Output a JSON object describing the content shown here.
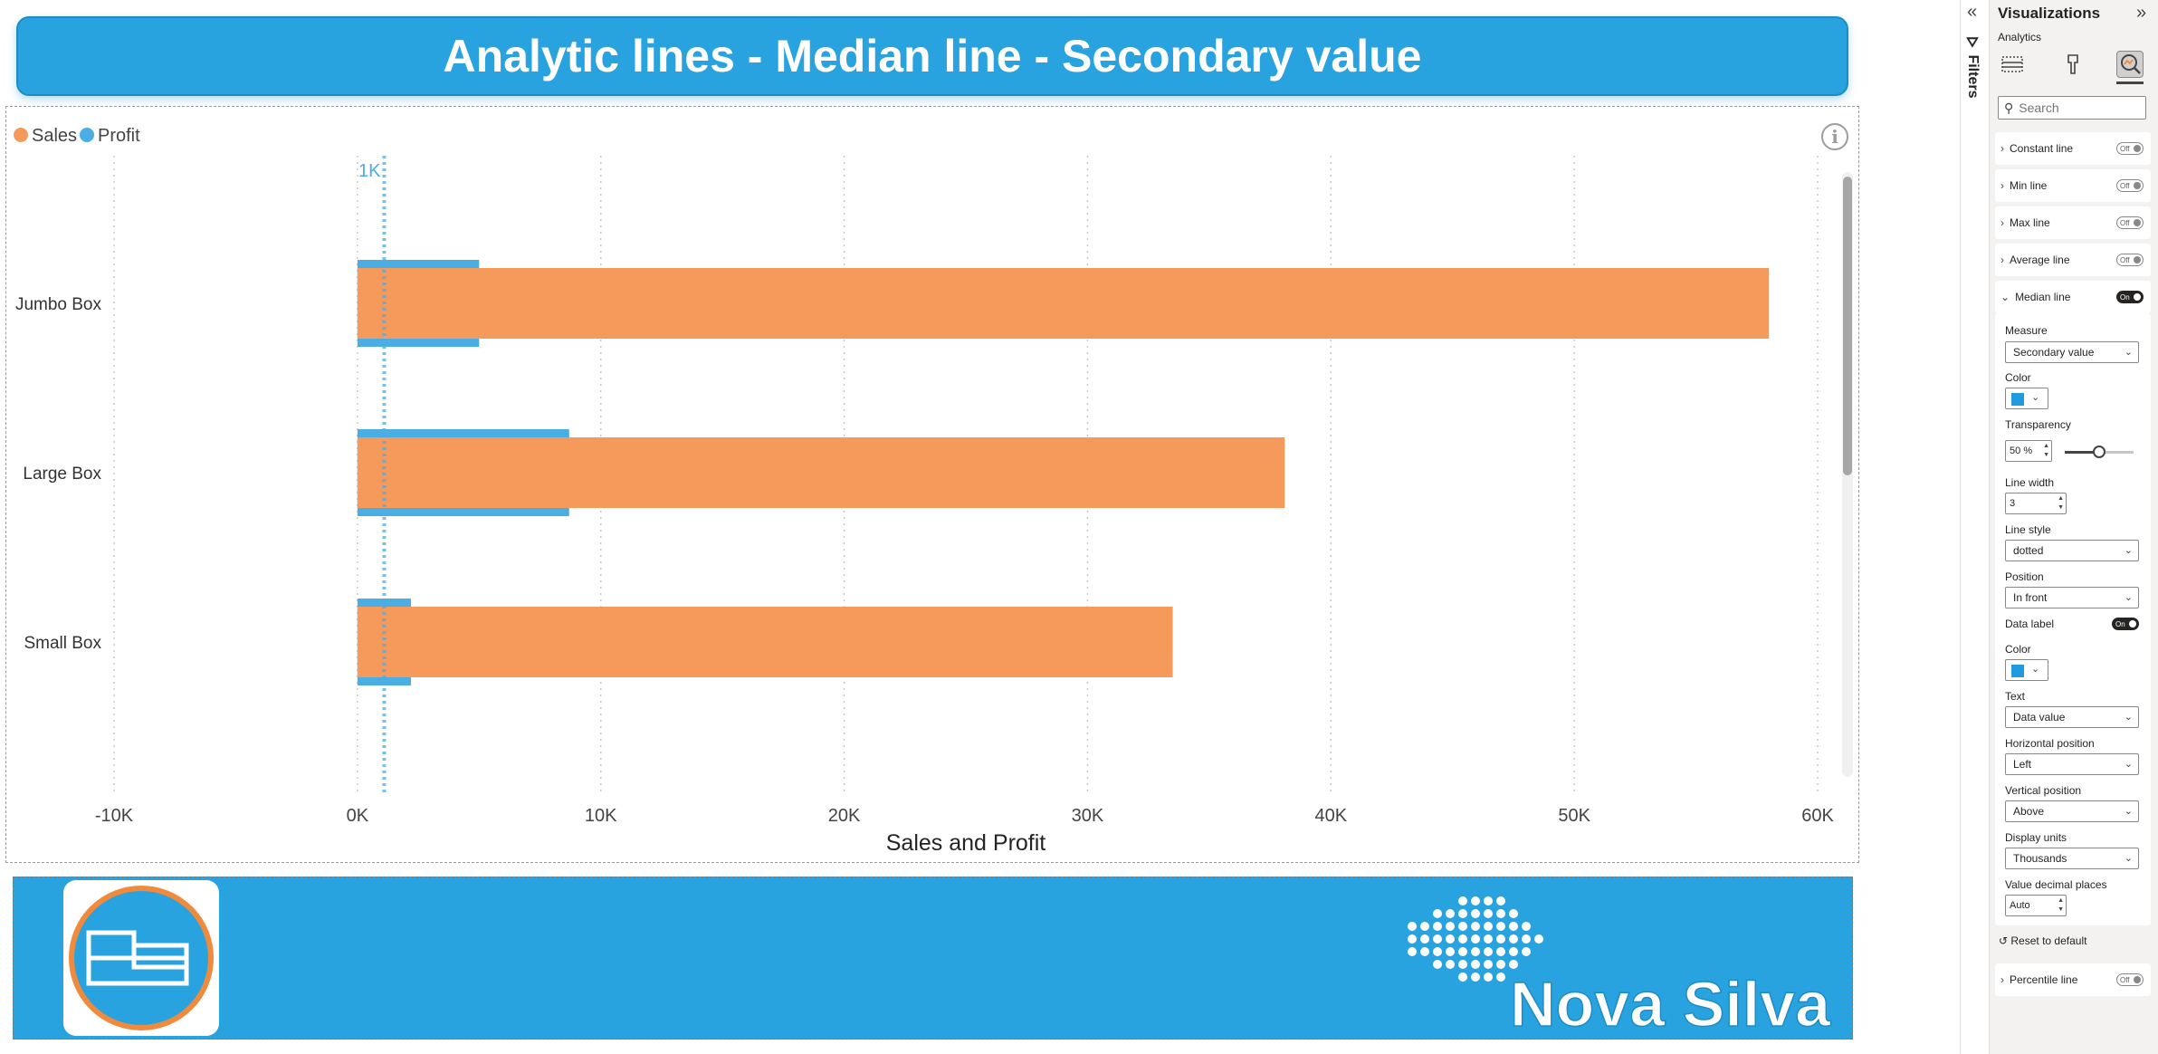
{
  "report": {
    "title": "Analytic lines - Median line - Secondary value"
  },
  "chart_data": {
    "type": "bar",
    "orientation": "horizontal",
    "categories": [
      "Jumbo Box",
      "Large Box",
      "Small Box"
    ],
    "series": [
      {
        "name": "Sales",
        "values": [
          58000,
          38100,
          33500
        ],
        "color": "#f59a5b"
      },
      {
        "name": "Profit",
        "values": [
          5000,
          8700,
          2200
        ],
        "color": "#4aade3"
      }
    ],
    "xlabel": "Sales and Profit",
    "ylabel": "",
    "xlim": [
      -10000,
      60000
    ],
    "xticks": [
      "-10K",
      "0K",
      "10K",
      "20K",
      "30K",
      "40K",
      "50K",
      "60K"
    ],
    "xtick_values": [
      -10000,
      0,
      10000,
      20000,
      30000,
      40000,
      50000,
      60000
    ],
    "grid": "vertical dotted",
    "legend": "top-left",
    "median_line": {
      "value": 1100,
      "label": "1K",
      "style": "dotted",
      "color": "#4aade3"
    }
  },
  "footer": {
    "brand": "Nova Silva"
  },
  "filters_pane": {
    "label": "Filters"
  },
  "visualizations_pane": {
    "title": "Visualizations",
    "subtitle": "Analytics",
    "search_placeholder": "Search",
    "sections": [
      {
        "label": "Constant line",
        "toggle": "Off"
      },
      {
        "label": "Min line",
        "toggle": "Off"
      },
      {
        "label": "Max line",
        "toggle": "Off"
      },
      {
        "label": "Average line",
        "toggle": "Off"
      },
      {
        "label": "Median line",
        "toggle": "On"
      }
    ],
    "median_settings": {
      "measure_label": "Measure",
      "measure_value": "Secondary value",
      "color_label": "Color",
      "transparency_label": "Transparency",
      "transparency_value": "50",
      "transparency_unit": "%",
      "line_width_label": "Line width",
      "line_width_value": "3",
      "line_style_label": "Line style",
      "line_style_value": "dotted",
      "position_label": "Position",
      "position_value": "In front",
      "data_label_label": "Data label",
      "data_label_toggle": "On",
      "label_color_label": "Color",
      "text_label": "Text",
      "text_value": "Data value",
      "hpos_label": "Horizontal position",
      "hpos_value": "Left",
      "vpos_label": "Vertical position",
      "vpos_value": "Above",
      "display_units_label": "Display units",
      "display_units_value": "Thousands",
      "decimal_label": "Value decimal places",
      "decimal_value": "Auto",
      "line_color": "#1f9bde"
    },
    "reset_label": "Reset to default",
    "percentile": {
      "label": "Percentile line",
      "toggle": "Off"
    }
  }
}
